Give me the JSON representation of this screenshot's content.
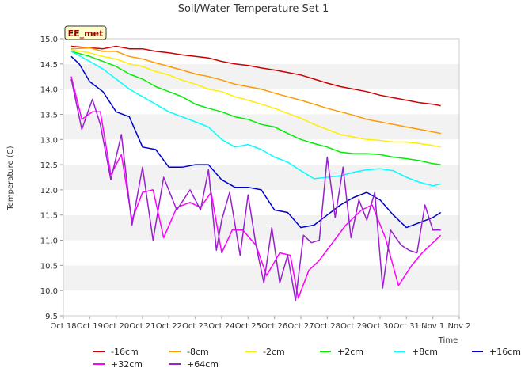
{
  "chart_data": {
    "type": "line",
    "title": "Soil/Water Temperature Set 1",
    "xlabel": "Time",
    "ylabel": "Temperature (C)",
    "annotation": "EE_met",
    "ylim": [
      9.5,
      15.0
    ],
    "xlim": [
      0,
      15
    ],
    "yticks": [
      "9.5",
      "10.0",
      "10.5",
      "11.0",
      "11.5",
      "12.0",
      "12.5",
      "13.0",
      "13.5",
      "14.0",
      "14.5",
      "15.0"
    ],
    "xticks": [
      "Oct 18",
      "Oct 19",
      "Oct 20",
      "Oct 21",
      "Oct 22",
      "Oct 23",
      "Oct 24",
      "Oct 25",
      "Oct 26",
      "Oct 27",
      "Oct 28",
      "Oct 29",
      "Oct 30",
      "Oct 31",
      "Nov 1",
      "Nov 2"
    ],
    "grid": true,
    "legend_position": "bottom",
    "x_unit": "days since Oct 18",
    "series": [
      {
        "name": "-16cm",
        "color": "#cc0000",
        "x": [
          0.3,
          1,
          1.5,
          2,
          2.5,
          3,
          3.5,
          4,
          4.5,
          5,
          5.5,
          6,
          6.5,
          7,
          7.5,
          8,
          8.5,
          9,
          9.5,
          10,
          10.5,
          11,
          11.5,
          12,
          12.5,
          13,
          13.5,
          14,
          14.3
        ],
        "y": [
          14.85,
          14.82,
          14.8,
          14.85,
          14.8,
          14.8,
          14.75,
          14.72,
          14.68,
          14.65,
          14.62,
          14.55,
          14.5,
          14.47,
          14.42,
          14.38,
          14.33,
          14.28,
          14.2,
          14.12,
          14.05,
          14.0,
          13.95,
          13.88,
          13.83,
          13.78,
          13.73,
          13.7,
          13.67
        ]
      },
      {
        "name": "-8cm",
        "color": "#ff9900",
        "x": [
          0.3,
          1,
          1.5,
          2,
          2.5,
          3,
          3.5,
          4,
          4.5,
          5,
          5.5,
          6,
          6.5,
          7,
          7.5,
          8,
          8.5,
          9,
          9.5,
          10,
          10.5,
          11,
          11.5,
          12,
          12.5,
          13,
          13.5,
          14,
          14.3
        ],
        "y": [
          14.8,
          14.82,
          14.75,
          14.75,
          14.65,
          14.6,
          14.52,
          14.45,
          14.38,
          14.3,
          14.25,
          14.18,
          14.1,
          14.05,
          14.0,
          13.92,
          13.85,
          13.78,
          13.7,
          13.62,
          13.55,
          13.48,
          13.4,
          13.35,
          13.3,
          13.25,
          13.2,
          13.15,
          13.12
        ]
      },
      {
        "name": "-2cm",
        "color": "#ffee00",
        "x": [
          0.3,
          1,
          1.5,
          2,
          2.5,
          3,
          3.5,
          4,
          4.5,
          5,
          5.5,
          6,
          6.5,
          7,
          7.5,
          8,
          8.5,
          9,
          9.5,
          10,
          10.5,
          11,
          11.5,
          12,
          12.5,
          13,
          13.5,
          14,
          14.3
        ],
        "y": [
          14.78,
          14.72,
          14.65,
          14.6,
          14.5,
          14.45,
          14.35,
          14.28,
          14.18,
          14.1,
          14.0,
          13.95,
          13.85,
          13.78,
          13.7,
          13.62,
          13.52,
          13.42,
          13.3,
          13.2,
          13.1,
          13.05,
          13.0,
          12.98,
          12.95,
          12.95,
          12.92,
          12.88,
          12.85
        ]
      },
      {
        "name": "+2cm",
        "color": "#00ee00",
        "x": [
          0.3,
          1,
          1.5,
          2,
          2.5,
          3,
          3.5,
          4,
          4.5,
          5,
          5.5,
          6,
          6.5,
          7,
          7.5,
          8,
          8.5,
          9,
          9.5,
          10,
          10.5,
          11,
          11.5,
          12,
          12.5,
          13,
          13.5,
          14,
          14.3
        ],
        "y": [
          14.75,
          14.65,
          14.55,
          14.45,
          14.3,
          14.2,
          14.05,
          13.95,
          13.85,
          13.7,
          13.62,
          13.55,
          13.45,
          13.4,
          13.3,
          13.25,
          13.12,
          13.0,
          12.92,
          12.85,
          12.75,
          12.72,
          12.72,
          12.7,
          12.65,
          12.62,
          12.58,
          12.52,
          12.5
        ]
      },
      {
        "name": "+8cm",
        "color": "#00ffff",
        "x": [
          0.3,
          1,
          1.5,
          2,
          2.5,
          3,
          3.5,
          4,
          4.5,
          5,
          5.5,
          6,
          6.5,
          7,
          7.5,
          8,
          8.5,
          9,
          9.5,
          10,
          10.5,
          11,
          11.5,
          12,
          12.5,
          13,
          13.5,
          14,
          14.3
        ],
        "y": [
          14.75,
          14.55,
          14.4,
          14.2,
          14.0,
          13.85,
          13.7,
          13.55,
          13.45,
          13.35,
          13.25,
          13.0,
          12.85,
          12.9,
          12.8,
          12.65,
          12.55,
          12.38,
          12.22,
          12.25,
          12.28,
          12.35,
          12.4,
          12.42,
          12.38,
          12.25,
          12.15,
          12.08,
          12.12
        ]
      },
      {
        "name": "+16cm",
        "color": "#0000cc",
        "x": [
          0.3,
          0.6,
          1,
          1.5,
          2,
          2.5,
          3,
          3.5,
          4,
          4.5,
          5,
          5.5,
          6,
          6.5,
          7,
          7.5,
          8,
          8.5,
          9,
          9.5,
          10,
          10.5,
          11,
          11.5,
          12,
          12.5,
          13,
          13.5,
          14,
          14.3
        ],
        "y": [
          14.65,
          14.5,
          14.15,
          13.95,
          13.55,
          13.45,
          12.85,
          12.8,
          12.45,
          12.45,
          12.5,
          12.5,
          12.2,
          12.05,
          12.05,
          12.0,
          11.6,
          11.55,
          11.25,
          11.3,
          11.5,
          11.7,
          11.85,
          11.95,
          11.8,
          11.5,
          11.25,
          11.35,
          11.45,
          11.55
        ]
      },
      {
        "name": "+32cm",
        "color": "#ff00ff",
        "x": [
          0.3,
          0.7,
          1.1,
          1.4,
          1.8,
          2.2,
          2.6,
          3.0,
          3.4,
          3.8,
          4.3,
          4.8,
          5.2,
          5.6,
          6.0,
          6.4,
          6.8,
          7.3,
          7.7,
          8.2,
          8.6,
          8.9,
          9.3,
          9.7,
          10.2,
          10.7,
          11.3,
          11.7,
          12.2,
          12.7,
          13.2,
          13.6,
          14.0,
          14.3
        ],
        "y": [
          14.25,
          13.4,
          13.55,
          13.55,
          12.3,
          12.7,
          11.4,
          11.95,
          12.0,
          11.05,
          11.65,
          11.75,
          11.65,
          11.95,
          10.75,
          11.2,
          11.2,
          10.9,
          10.3,
          10.75,
          10.7,
          9.85,
          10.4,
          10.6,
          10.95,
          11.3,
          11.6,
          11.7,
          11.05,
          10.1,
          10.5,
          10.75,
          10.95,
          11.1
        ]
      },
      {
        "name": "+64cm",
        "color": "#9922cc",
        "x": [
          0.3,
          0.7,
          1.1,
          1.4,
          1.8,
          2.2,
          2.6,
          3.0,
          3.4,
          3.8,
          4.3,
          4.8,
          5.2,
          5.5,
          5.8,
          6.0,
          6.3,
          6.7,
          7.0,
          7.3,
          7.6,
          7.9,
          8.2,
          8.5,
          8.8,
          9.1,
          9.4,
          9.7,
          10.0,
          10.3,
          10.6,
          10.9,
          11.2,
          11.5,
          11.8,
          12.1,
          12.4,
          12.8,
          13.1,
          13.4,
          13.7,
          14.0,
          14.3
        ],
        "y": [
          14.2,
          13.2,
          13.8,
          13.3,
          12.2,
          13.1,
          11.3,
          12.45,
          11.0,
          12.25,
          11.6,
          12.0,
          11.6,
          12.4,
          10.8,
          11.4,
          11.95,
          10.7,
          11.9,
          10.9,
          10.15,
          11.25,
          10.15,
          10.7,
          9.8,
          11.1,
          10.95,
          11.0,
          12.65,
          11.45,
          12.45,
          11.05,
          11.8,
          11.4,
          11.95,
          10.05,
          11.2,
          10.9,
          10.8,
          10.75,
          11.7,
          11.2,
          11.2
        ]
      }
    ]
  }
}
